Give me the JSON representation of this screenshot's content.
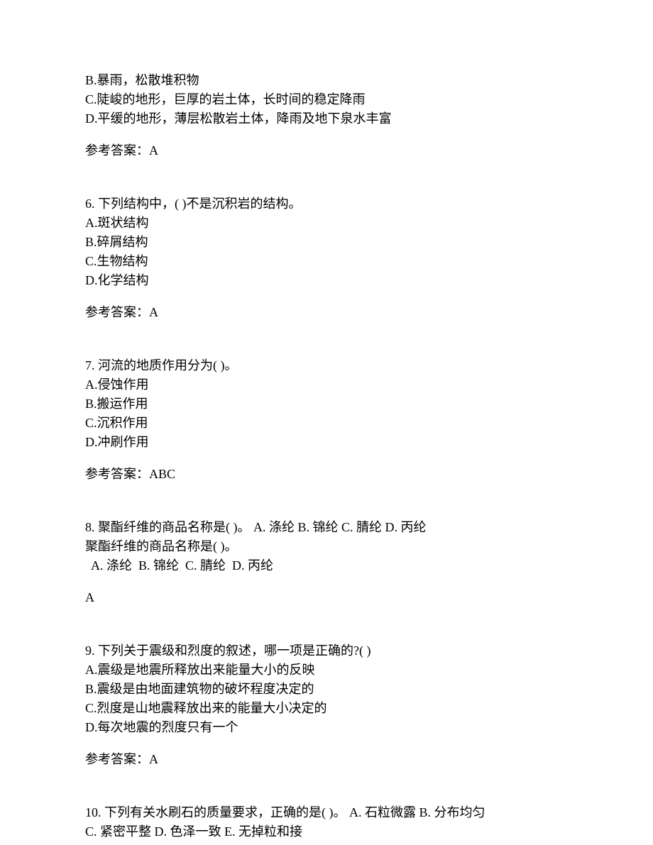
{
  "q5_partial": {
    "option_b": "B.暴雨，松散堆积物",
    "option_c": "C.陡峻的地形，巨厚的岩土体，长时间的稳定降雨",
    "option_d": "D.平缓的地形，薄层松散岩土体，降雨及地下泉水丰富",
    "answer": "参考答案：A"
  },
  "q6": {
    "stem": "6. 下列结构中，(  )不是沉积岩的结构。",
    "option_a": "A.斑状结构",
    "option_b": "B.碎屑结构",
    "option_c": "C.生物结构",
    "option_d": "D.化学结构",
    "answer": "参考答案：A"
  },
  "q7": {
    "stem": "7. 河流的地质作用分为(  )。",
    "option_a": "A.侵蚀作用",
    "option_b": "B.搬运作用",
    "option_c": "C.沉积作用",
    "option_d": "D.冲刷作用",
    "answer": "参考答案：ABC"
  },
  "q8": {
    "stem": "8. 聚酯纤维的商品名称是(  )。  A. 涤纶  B. 锦纶  C. 腈纶  D. 丙纶",
    "repeat": "聚酯纤维的商品名称是(  )。",
    "options_line": "  A. 涤纶  B. 锦纶  C. 腈纶  D. 丙纶",
    "answer": "A"
  },
  "q9": {
    "stem": "9. 下列关于震级和烈度的叙述，哪一项是正确的?(  )",
    "option_a": "A.震级是地震所释放出来能量大小的反映",
    "option_b": "B.震级是由地面建筑物的破坏程度决定的",
    "option_c": "C.烈度是山地震释放出来的能量大小决定的",
    "option_d": "D.每次地震的烈度只有一个",
    "answer": "参考答案：A"
  },
  "q10": {
    "line1": "10. 下列有关水刷石的质量要求，正确的是(  )。  A. 石粒微露  B. 分布均匀",
    "line2": "C. 紧密平整  D. 色泽一致  E. 无掉粒和接"
  }
}
